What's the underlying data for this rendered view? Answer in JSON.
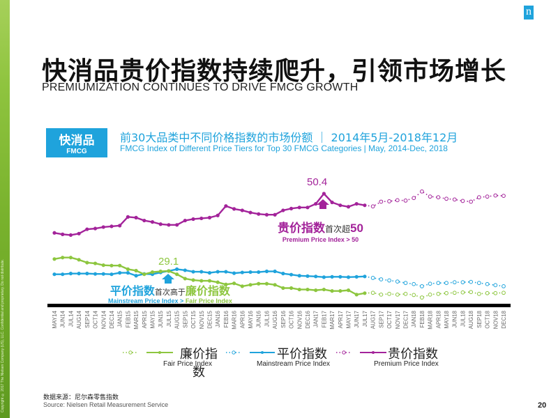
{
  "sidebar": {
    "copyright": "Copyright © 2017 The Nielsen Company (US), LLC. Confidential and proprietary. Do not distribute."
  },
  "logo": {
    "glyph": "n",
    "color": "#1fa3dc"
  },
  "header": {
    "title_cn": "快消品贵价指数持续爬升，引领市场增长",
    "title_en": "PREMIUMIZATION CONTINUES TO DRIVE FMCG GROWTH"
  },
  "badge": {
    "cn": "快消品",
    "en": "FMCG",
    "color": "#1fa3dc"
  },
  "subtitle": {
    "cn": "前30大品类中不同价格指数的市场份额 ｜ 2014年5月-2018年12月",
    "en": "FMCG Index of Different Price Tiers for Top 30 FMCG Categories | May, 2014-Dec, 2018"
  },
  "annotations": {
    "premium_peak_value": "50.4",
    "premium_cn_main": "贵价指数",
    "premium_cn_rest": "首次超",
    "premium_cn_num": "50",
    "premium_en": "Premium Price Index > 50",
    "cross_value": "29.1",
    "cross_cn_a": "平价指数",
    "cross_cn_mid": "首次高于",
    "cross_cn_b": "廉价指数",
    "cross_en_a": "Mainstream Price Index > ",
    "cross_en_b": "Fair Price Index"
  },
  "legend": [
    {
      "cn": "廉价指数",
      "en": "Fair Price Index",
      "color": "#8dc63f"
    },
    {
      "cn": "平价指数",
      "en": "Mainstream Price Index",
      "color": "#1fa3dc"
    },
    {
      "cn": "贵价指数",
      "en": "Premium Price Index",
      "color": "#a3239a"
    }
  ],
  "source": {
    "cn": "数据来源：尼尔森零售指数",
    "en": "Source: Nielsen Retail Measurement Service"
  },
  "page_number": "20",
  "chart_data": {
    "type": "line",
    "title": "FMCG Index of Different Price Tiers for Top 30 FMCG Categories | May, 2014-Dec, 2018",
    "xlabel": "",
    "ylabel": "",
    "ylim": [
      24,
      57
    ],
    "grid": false,
    "legend_position": "bottom",
    "solid_until_index": 38,
    "categories": [
      "MAY14",
      "JUN14",
      "JUL14",
      "AUG14",
      "SEP14",
      "OCT14",
      "NOV14",
      "DEC14",
      "JAN15",
      "FEB15",
      "MAR15",
      "APR15",
      "MAY15",
      "JUN15",
      "JUL15",
      "AUG15",
      "SEP15",
      "OCT15",
      "NOV15",
      "DEC15",
      "JAN16",
      "FEB16",
      "MAR16",
      "APR16",
      "MAY16",
      "JUN16",
      "JUL16",
      "AUG16",
      "SEP16",
      "OCT16",
      "NOV16",
      "DEC16",
      "JAN17",
      "FEB17",
      "MAR17",
      "APR17",
      "MAY17",
      "JUN17",
      "JUL17",
      "AUG17",
      "SEP17",
      "OCT17",
      "NOV17",
      "DEC17",
      "JAN18",
      "FEB18",
      "MAR18",
      "APR18",
      "MAY18",
      "JUN18",
      "JUL18",
      "AUG18",
      "SEP18",
      "OCT18",
      "NOV18",
      "DEC18"
    ],
    "series": [
      {
        "name": "Premium Price Index",
        "name_cn": "贵价指数",
        "color": "#a3239a",
        "values": [
          39.6,
          39.2,
          39.0,
          39.4,
          40.6,
          40.8,
          41.2,
          41.4,
          41.6,
          44.0,
          43.8,
          43.0,
          42.6,
          42.0,
          41.8,
          41.8,
          43.0,
          43.4,
          43.6,
          43.8,
          44.4,
          47.0,
          46.2,
          45.8,
          45.2,
          44.8,
          44.6,
          44.6,
          45.8,
          46.3,
          46.6,
          46.6,
          47.6,
          50.4,
          48.0,
          47.2,
          46.8,
          47.6,
          47.2,
          46.9,
          48.2,
          48.3,
          48.6,
          48.5,
          49.2,
          51.0,
          49.6,
          49.4,
          49.0,
          48.8,
          48.4,
          48.2,
          49.4,
          49.6,
          49.9,
          49.8
        ]
      },
      {
        "name": "Mainstream Price Index",
        "name_cn": "平价指数",
        "color": "#1fa3dc",
        "values": [
          28.2,
          28.2,
          28.4,
          28.4,
          28.4,
          28.3,
          28.3,
          28.2,
          28.6,
          28.6,
          27.8,
          28.3,
          28.2,
          28.7,
          29.1,
          29.6,
          29.3,
          28.9,
          28.9,
          28.6,
          28.9,
          28.9,
          28.5,
          28.7,
          28.8,
          28.8,
          29.0,
          29.0,
          28.4,
          28.1,
          27.8,
          27.7,
          27.6,
          27.4,
          27.5,
          27.5,
          27.4,
          27.5,
          27.6,
          27.2,
          26.8,
          26.5,
          26.2,
          25.8,
          25.5,
          24.9,
          25.6,
          25.8,
          25.8,
          26.0,
          26.0,
          26.1,
          25.8,
          25.5,
          25.2,
          24.9
        ]
      },
      {
        "name": "Fair Price Index",
        "name_cn": "廉价指数",
        "color": "#8dc63f",
        "values": [
          32.4,
          32.8,
          32.8,
          32.2,
          31.4,
          31.2,
          30.7,
          30.6,
          30.6,
          29.6,
          29.2,
          28.2,
          28.8,
          29.0,
          29.1,
          28.2,
          27.0,
          26.6,
          26.4,
          26.4,
          26.0,
          25.4,
          25.7,
          24.9,
          25.3,
          25.6,
          25.6,
          25.3,
          24.4,
          24.4,
          24.0,
          24.0,
          23.8,
          24.0,
          23.6,
          23.6,
          23.8,
          22.6,
          23.0,
          23.1,
          22.6,
          22.8,
          22.6,
          22.8,
          22.5,
          21.8,
          22.6,
          22.8,
          23.0,
          23.1,
          23.2,
          23.3,
          22.8,
          23.0,
          23.0,
          23.1
        ]
      }
    ]
  }
}
